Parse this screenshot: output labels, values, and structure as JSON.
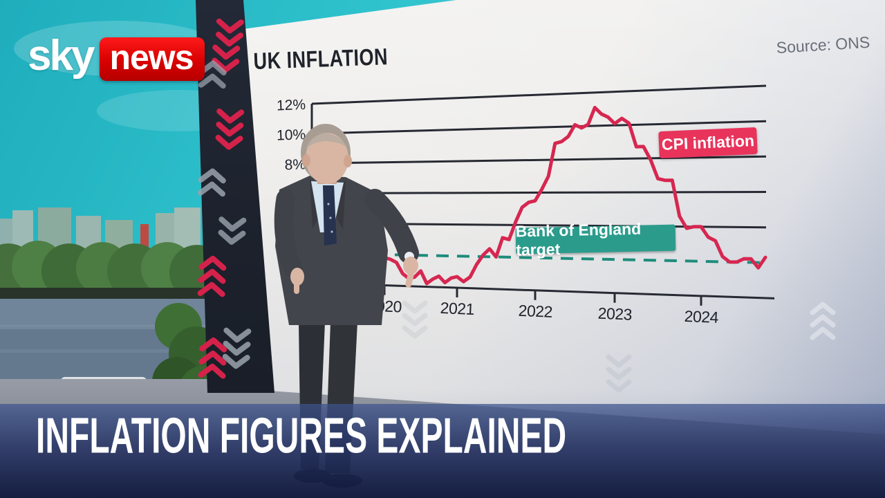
{
  "header": {
    "logo_sky": "sky",
    "logo_news": "news"
  },
  "chart": {
    "title": "UK INFLATION",
    "source": "Source: ONS",
    "cpi_label": "CPI inflation",
    "target_label": "Bank of England target",
    "y_tick_labels": [
      "12%",
      "10%",
      "8%"
    ],
    "x_tick_labels": [
      "2020",
      "2021",
      "2022",
      "2023",
      "2024"
    ]
  },
  "banner": {
    "headline": "INFLATION FIGURES EXPLAINED"
  },
  "colors": {
    "sky_teal": "#2fc3cd",
    "board": "#efeeec",
    "grid_line": "#272a33",
    "cpi_line": "#d62750",
    "cpi_chip_bg": "#e8335b",
    "target_chip_bg": "#2b9c8c",
    "target_dash": "#1d8c7b",
    "banner_blue": "#26346a",
    "logo_red": "#d80000",
    "pillar_navy": "#1c212c",
    "chevron_red": "#d5224a",
    "chevron_gray": "#9aa3ad",
    "title_text": "#20232b",
    "source_text": "#696e79"
  },
  "chart_data": {
    "type": "line",
    "title": "UK INFLATION",
    "source": "Source: ONS",
    "xlabel": "",
    "ylabel": "",
    "ylim": [
      0,
      12
    ],
    "y_gridlines_pct": [
      12,
      10,
      8,
      6,
      4
    ],
    "y_tick_labels": [
      {
        "label": "12%",
        "value": 12
      },
      {
        "label": "10%",
        "value": 10
      },
      {
        "label": "8%",
        "value": 8
      }
    ],
    "x_ticks": [
      2020,
      2021,
      2022,
      2023,
      2024
    ],
    "grid": "horizontal",
    "legend_position": "inline-label",
    "target_line": {
      "label": "Bank of England target",
      "value": 2,
      "style": "dashed"
    },
    "series": [
      {
        "name": "CPI inflation",
        "start": "2019-01",
        "frequency": "monthly",
        "values": [
          1.8,
          1.9,
          1.9,
          2.1,
          2.0,
          2.0,
          2.1,
          1.7,
          1.7,
          1.5,
          1.5,
          1.3,
          1.8,
          1.7,
          1.5,
          0.8,
          0.5,
          0.6,
          1.0,
          0.2,
          0.5,
          0.7,
          0.3,
          0.6,
          0.7,
          0.4,
          0.7,
          1.5,
          2.1,
          2.5,
          2.0,
          3.2,
          3.1,
          4.2,
          5.1,
          5.4,
          5.5,
          6.2,
          7.0,
          9.0,
          9.1,
          9.4,
          10.1,
          9.9,
          10.1,
          11.1,
          10.7,
          10.5,
          10.1,
          10.4,
          10.1,
          8.7,
          8.7,
          7.9,
          6.8,
          6.7,
          6.7,
          4.6,
          3.9,
          4.0,
          4.0,
          3.4,
          3.2,
          2.3,
          2.0,
          2.0,
          2.2,
          2.2,
          1.7,
          2.3
        ]
      }
    ]
  }
}
